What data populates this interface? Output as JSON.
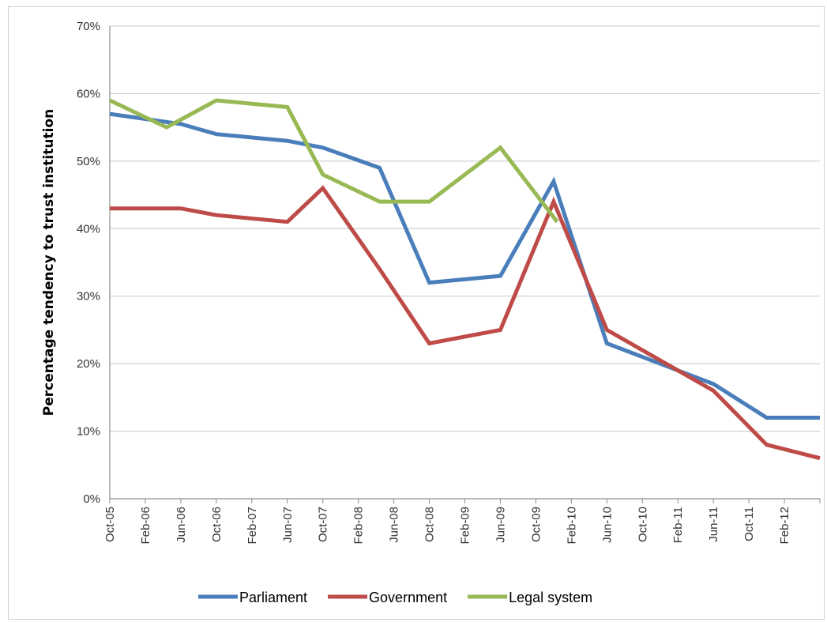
{
  "chart_data": {
    "type": "line",
    "title": "",
    "xlabel": "",
    "ylabel": "Percentage  tendency to trust institution",
    "ylim": [
      0,
      70
    ],
    "yticks": [
      "0%",
      "10%",
      "20%",
      "30%",
      "40%",
      "50%",
      "60%",
      "70%"
    ],
    "categories": [
      "Oct-05",
      "Feb-06",
      "Jun-06",
      "Oct-06",
      "Feb-07",
      "Jun-07",
      "Oct-07",
      "Feb-08",
      "Jun-08",
      "Oct-08",
      "Feb-09",
      "Jun-09",
      "Oct-09",
      "Feb-10",
      "Jun-10",
      "Oct-10",
      "Feb-11",
      "Jun-11",
      "Oct-11",
      "Feb-12"
    ],
    "grid": true,
    "legend_position": "bottom",
    "series": [
      {
        "name": "Parliament",
        "color": "#4a7ebb",
        "points": [
          [
            0,
            57
          ],
          [
            2,
            55.5
          ],
          [
            3,
            54
          ],
          [
            5,
            53
          ],
          [
            6,
            52
          ],
          [
            7.6,
            49
          ],
          [
            9,
            32
          ],
          [
            11,
            33
          ],
          [
            12.5,
            47
          ],
          [
            14,
            23
          ],
          [
            16,
            19
          ],
          [
            17,
            17
          ],
          [
            18.5,
            12
          ],
          [
            20,
            12
          ]
        ]
      },
      {
        "name": "Government",
        "color": "#be4b48",
        "points": [
          [
            0,
            43
          ],
          [
            2,
            43
          ],
          [
            3,
            42
          ],
          [
            5,
            41
          ],
          [
            6,
            46
          ],
          [
            7.6,
            34
          ],
          [
            9,
            23
          ],
          [
            11,
            25
          ],
          [
            12.5,
            44
          ],
          [
            14,
            25
          ],
          [
            16,
            19
          ],
          [
            17,
            16
          ],
          [
            18.5,
            8
          ],
          [
            20,
            6
          ]
        ]
      },
      {
        "name": "Legal system",
        "color": "#98b954",
        "points": [
          [
            0,
            59
          ],
          [
            1.6,
            55
          ],
          [
            3,
            59
          ],
          [
            5,
            58
          ],
          [
            6,
            48
          ],
          [
            7.6,
            44
          ],
          [
            9,
            44
          ],
          [
            11,
            52
          ],
          [
            12.6,
            41
          ]
        ]
      }
    ]
  }
}
